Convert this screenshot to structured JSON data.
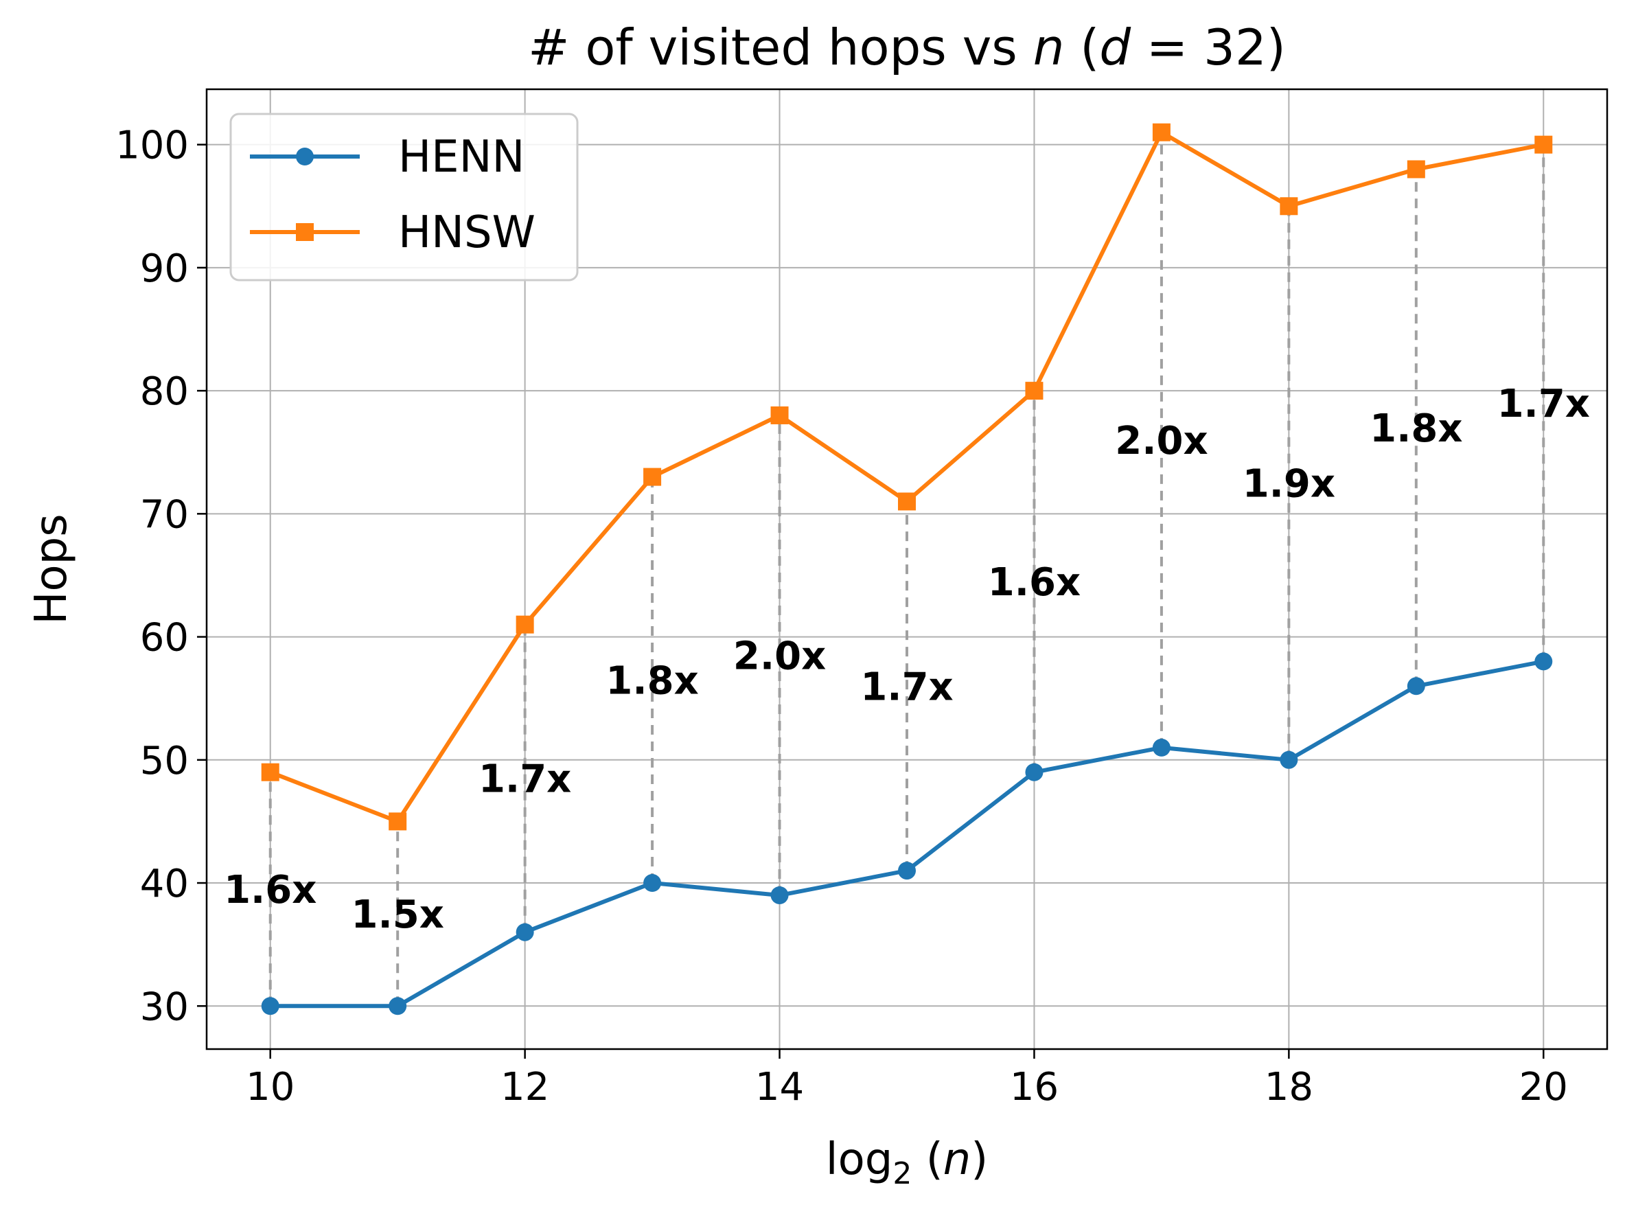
{
  "chart_data": {
    "type": "line",
    "title": "# of visited hops vs n (d = 32)",
    "title_parts": {
      "prefix": "# of visited hops vs ",
      "n": "n",
      "open": " (",
      "d": "d",
      "eq": " = 32)"
    },
    "xlabel": "log2 (n)",
    "xlabel_parts": {
      "log": "log",
      "sub": "2",
      "open": " (",
      "n": "n",
      "close": ")"
    },
    "ylabel": "Hops",
    "x": [
      10,
      11,
      12,
      13,
      14,
      15,
      16,
      17,
      18,
      19,
      20
    ],
    "xlim": [
      9.5,
      20.5
    ],
    "ylim": [
      26.5,
      104.5
    ],
    "xticks": [
      10,
      12,
      14,
      16,
      18,
      20
    ],
    "yticks": [
      30,
      40,
      50,
      60,
      70,
      80,
      90,
      100
    ],
    "grid": true,
    "legend_position": "top-left",
    "series": [
      {
        "name": "HENN",
        "color": "#1f77b4",
        "marker": "circle",
        "values": [
          30,
          30,
          36,
          40,
          39,
          41,
          49,
          51,
          50,
          56,
          58
        ]
      },
      {
        "name": "HNSW",
        "color": "#ff7f0e",
        "marker": "square",
        "values": [
          49,
          45,
          61,
          73,
          78,
          71,
          80,
          101,
          95,
          98,
          100
        ]
      }
    ],
    "ratio_labels": [
      "1.6x",
      "1.5x",
      "1.7x",
      "1.8x",
      "2.0x",
      "1.7x",
      "1.6x",
      "2.0x",
      "1.9x",
      "1.8x",
      "1.7x"
    ]
  }
}
